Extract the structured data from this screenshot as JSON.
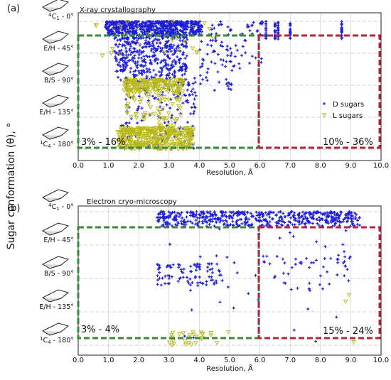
{
  "panels": [
    {
      "label": "(a)",
      "method_title": "X-ray crystallography",
      "left_box_pct": "3% - 16%",
      "right_box_pct": "10% - 36%"
    },
    {
      "label": "(b)",
      "method_title": "Electron cryo-microscopy",
      "left_box_pct": "3% - 4%",
      "right_box_pct": "15% - 24%"
    }
  ],
  "y_axis_title": "Sugar conformation (θ), °",
  "conformer_labels": [
    {
      "sup": "4",
      "base": "C",
      "sub": "1",
      "suffix": " - 0°"
    },
    {
      "sup": "",
      "base": "E/H - 45°",
      "sub": "",
      "suffix": ""
    },
    {
      "sup": "",
      "base": "B/S - 90°",
      "sub": "",
      "suffix": ""
    },
    {
      "sup": "",
      "base": "E/H - 135°",
      "sub": "",
      "suffix": ""
    },
    {
      "sup": "1",
      "base": "C",
      "sub": "4",
      "suffix": " - 180°"
    }
  ],
  "colors": {
    "d_sugars": "#1f1fd6",
    "l_sugars": "#c8c820",
    "green_box": "#3a8a3a",
    "red_box": "#b3263a",
    "gridline": "#c0c0cc"
  },
  "chart_data": [
    {
      "type": "scatter",
      "title": "X-ray crystallography",
      "xlabel": "Resolution, Å",
      "ylabel": "Sugar conformation (θ), °",
      "xlim": [
        0,
        10
      ],
      "ylim": [
        180,
        0
      ],
      "xticks": [
        "0.0",
        "1.0",
        "2.0",
        "3.0",
        "4.0",
        "5.0",
        "6.0",
        "7.0",
        "8.0",
        "9.0",
        "10.0"
      ],
      "yticks": [
        0,
        45,
        90,
        135,
        180
      ],
      "legend": {
        "placement": "right",
        "entries": [
          "D sugars",
          "L sugars"
        ]
      },
      "series": [
        {
          "name": "D sugars",
          "marker": "plus",
          "clusters": [
            {
              "x": [
                0.9,
                4.1
              ],
              "y": [
                0,
                20
              ],
              "n": 650
            },
            {
              "x": [
                1.2,
                3.6
              ],
              "y": [
                20,
                80
              ],
              "n": 420
            },
            {
              "x": [
                1.4,
                3.9
              ],
              "y": [
                80,
                180
              ],
              "n": 180
            },
            {
              "x": [
                4.0,
                5.1
              ],
              "y": [
                0,
                100
              ],
              "n": 70
            },
            {
              "x": [
                5.0,
                6.1
              ],
              "y": [
                0,
                70
              ],
              "n": 40
            }
          ],
          "columns": [
            6.2,
            6.5,
            6.6,
            7.0,
            8.7
          ],
          "column_y": [
            0,
            25
          ]
        },
        {
          "name": "L sugars",
          "marker": "triangle-down",
          "clusters": [
            {
              "x": [
                1.3,
                3.8
              ],
              "y": [
                150,
                180
              ],
              "n": 360
            },
            {
              "x": [
                1.5,
                3.5
              ],
              "y": [
                82,
                100
              ],
              "n": 170
            },
            {
              "x": [
                1.6,
                3.4
              ],
              "y": [
                100,
                150
              ],
              "n": 70
            },
            {
              "x": [
                0.5,
                4.5
              ],
              "y": [
                0,
                50
              ],
              "n": 25
            }
          ]
        }
      ],
      "boxes": [
        {
          "x": [
            0,
            6.0
          ],
          "y": [
            18,
            180
          ],
          "color": "green",
          "label": "3% - 16%"
        },
        {
          "x": [
            6.0,
            10.0
          ],
          "y": [
            18,
            180
          ],
          "color": "red",
          "label": "10% - 36%"
        }
      ]
    },
    {
      "type": "scatter",
      "title": "Electron cryo-microscopy",
      "xlabel": "Resolution, Å",
      "ylabel": "Sugar conformation (θ), °",
      "xlim": [
        0,
        10
      ],
      "ylim": [
        180,
        0
      ],
      "xticks": [
        "0.0",
        "1.0",
        "2.0",
        "3.0",
        "4.0",
        "5.0",
        "6.0",
        "7.0",
        "8.0",
        "9.0",
        "10.0"
      ],
      "yticks": [
        0,
        45,
        90,
        135,
        180
      ],
      "series": [
        {
          "name": "D sugars",
          "marker": "plus",
          "clusters": [
            {
              "x": [
                2.6,
                9.3
              ],
              "y": [
                0,
                20
              ],
              "n": 520
            },
            {
              "x": [
                2.6,
                4.8
              ],
              "y": [
                70,
                100
              ],
              "n": 90
            },
            {
              "x": [
                6.0,
                9.0
              ],
              "y": [
                60,
                105
              ],
              "n": 50
            },
            {
              "x": [
                3.0,
                9.0
              ],
              "y": [
                20,
                180
              ],
              "n": 35
            }
          ]
        },
        {
          "name": "L sugars",
          "marker": "triangle-down",
          "clusters": [
            {
              "x": [
                3.0,
                5.0
              ],
              "y": [
                162,
                180
              ],
              "n": 28
            },
            {
              "x": [
                8.8,
                9.2
              ],
              "y": [
                80,
                180
              ],
              "n": 3
            }
          ]
        }
      ],
      "boxes": [
        {
          "x": [
            0,
            6.0
          ],
          "y": [
            22,
            160
          ],
          "color": "green",
          "label": "3% - 4%"
        },
        {
          "x": [
            6.0,
            10.0
          ],
          "y": [
            22,
            160
          ],
          "color": "red",
          "label": "15% - 24%"
        }
      ]
    }
  ]
}
